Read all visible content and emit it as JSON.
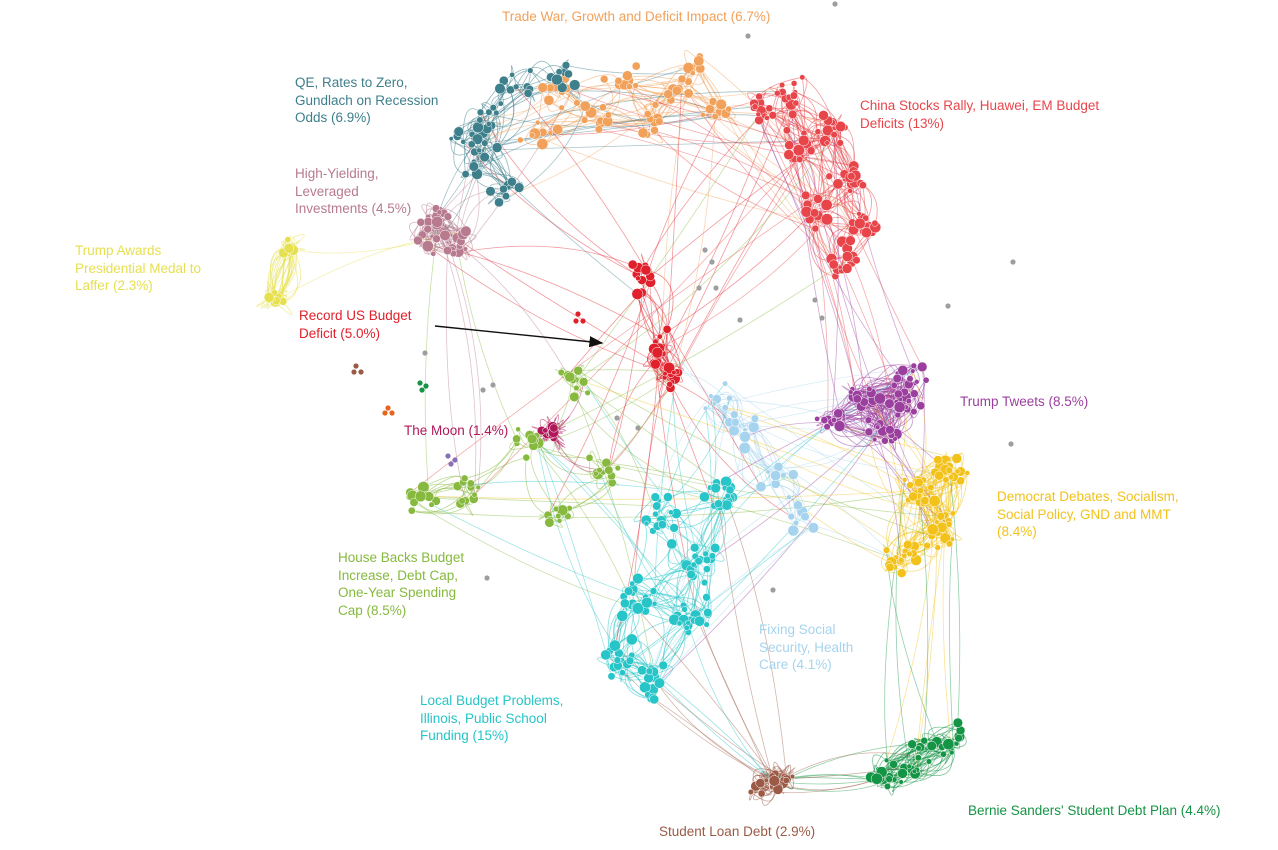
{
  "colors": {
    "trade_war": "#F2A15A",
    "qe_rates": "#3E7F8C",
    "china_stocks": "#E8454B",
    "high_yield": "#B77A8E",
    "trump_awards": "#E6E04F",
    "record_budget": "#E0202A",
    "the_moon": "#B0185A",
    "trump_tweets": "#9B3F9E",
    "democrat_debates": "#F2C21B",
    "house_budget": "#86B93E",
    "fixing_social": "#A6D4EE",
    "local_budget": "#27C4C8",
    "student_loan": "#9B5A45",
    "bernie_sanders": "#149445",
    "other": "#9E9E9E"
  },
  "clusters": [
    {
      "id": "trade_war",
      "label_lines": [
        "Trade  War, Growth and Deficit Impact (6.7%)"
      ]
    },
    {
      "id": "qe_rates",
      "label_lines": [
        "QE, Rates to Zero,",
        "Gundlach on Recession",
        "Odds (6.9%)"
      ]
    },
    {
      "id": "china_stocks",
      "label_lines": [
        "China Stocks Rally, Huawei, EM Budget",
        "Deficits (13%)"
      ]
    },
    {
      "id": "high_yield",
      "label_lines": [
        "High-Yielding,",
        "Leveraged",
        "Investments (4.5%)"
      ]
    },
    {
      "id": "trump_awards",
      "label_lines": [
        "Trump Awards",
        "Presidential Medal to",
        "Laffer (2.3%)"
      ]
    },
    {
      "id": "record_budget",
      "label_lines": [
        "Record US Budget",
        "Deficit (5.0%)"
      ]
    },
    {
      "id": "the_moon",
      "label_lines": [
        "The Moon (1.4%)"
      ]
    },
    {
      "id": "trump_tweets",
      "label_lines": [
        "Trump Tweets (8.5%)"
      ]
    },
    {
      "id": "democrat_debates",
      "label_lines": [
        "Democrat Debates, Socialism,",
        "Social Policy, GND and MMT",
        "(8.4%)"
      ]
    },
    {
      "id": "house_budget",
      "label_lines": [
        "House Backs Budget",
        "Increase, Debt Cap,",
        "One-Year Spending",
        "Cap (8.5%)"
      ]
    },
    {
      "id": "fixing_social",
      "label_lines": [
        "Fixing Social",
        "Security, Health",
        "Care (4.1%)"
      ]
    },
    {
      "id": "local_budget",
      "label_lines": [
        "Local Budget Problems,",
        "Illinois, Public School",
        "Funding (15%)"
      ]
    },
    {
      "id": "student_loan",
      "label_lines": [
        "Student Loan Debt (2.9%)"
      ]
    },
    {
      "id": "bernie_sanders",
      "label_lines": [
        "Bernie Sanders' Student Debt Plan (4.4%)"
      ]
    }
  ]
}
